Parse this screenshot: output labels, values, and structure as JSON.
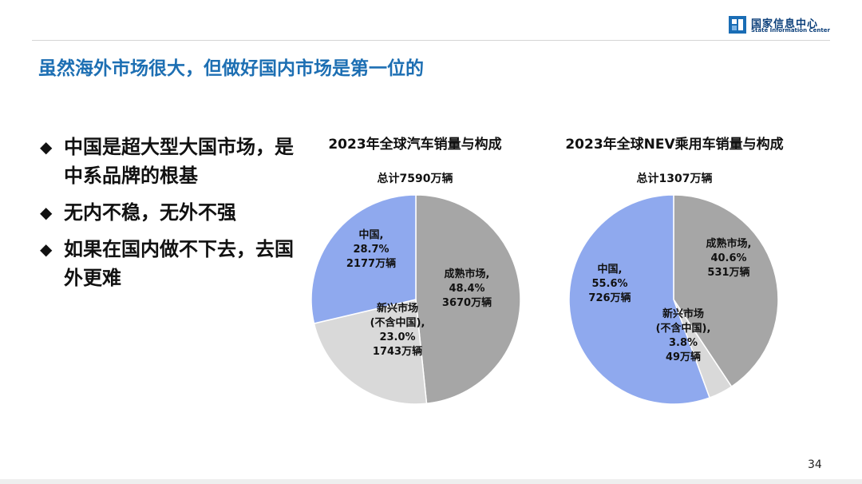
{
  "header": {
    "logo_cn": "国家信息中心",
    "logo_en": "State Information Center",
    "brand_color": "#1a6db5"
  },
  "title": "虽然海外市场很大，但做好国内市场是第一位的",
  "bullets": [
    {
      "icon": "diamond-bullet",
      "text": "中国是超大型大国市场，是中系品牌的根基"
    },
    {
      "icon": "diamond-bullet",
      "text": "无内不稳，无外不强"
    },
    {
      "icon": "diamond-bullet",
      "text": "如果在国内做不下去，去国外更难"
    }
  ],
  "chart_data": [
    {
      "type": "pie",
      "title": "2023年全球汽车销量与构成",
      "subtitle": "总计7590万辆",
      "unit": "万辆",
      "slices": [
        {
          "name": "成熟市场",
          "label": "成熟市场,",
          "percent": "48.4%",
          "value": 3670,
          "amount": "3670万辆",
          "color": "#a6a6a6"
        },
        {
          "name": "新兴市场(不含中国)",
          "label": "新兴市场",
          "label2": "(不含中国),",
          "percent": "23.0%",
          "value": 1743,
          "amount": "1743万辆",
          "color": "#d9d9d9"
        },
        {
          "name": "中国",
          "label": "中国,",
          "percent": "28.7%",
          "value": 2177,
          "amount": "2177万辆",
          "color": "#8fa9ee"
        }
      ]
    },
    {
      "type": "pie",
      "title": "2023年全球NEV乘用车销量与构成",
      "subtitle": "总计1307万辆",
      "unit": "万辆",
      "slices": [
        {
          "name": "成熟市场",
          "label": "成熟市场,",
          "percent": "40.6%",
          "value": 531,
          "amount": "531万辆",
          "color": "#a6a6a6"
        },
        {
          "name": "新兴市场(不含中国)",
          "label": "新兴市场",
          "label2": "(不含中国),",
          "percent": "3.8%",
          "value": 49,
          "amount": "49万辆",
          "color": "#d9d9d9"
        },
        {
          "name": "中国",
          "label": "中国,",
          "percent": "55.6%",
          "value": 726,
          "amount": "726万辆",
          "color": "#8fa9ee"
        }
      ]
    }
  ],
  "page_number": "34"
}
